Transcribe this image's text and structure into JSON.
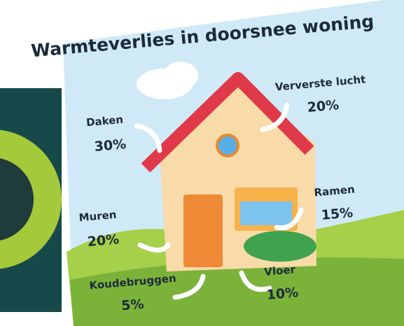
{
  "title": "Warmteverlies in doorsnee woning",
  "items": [
    {
      "label": "Daken",
      "value": "30%"
    },
    {
      "label": "Ververste lucht",
      "value": "20%"
    },
    {
      "label": "Ramen",
      "value": "15%"
    },
    {
      "label": "Muren",
      "value": "20%"
    },
    {
      "label": "Koudebruggen",
      "value": "5%"
    },
    {
      "label": "Vloer",
      "value": "10%"
    }
  ]
}
